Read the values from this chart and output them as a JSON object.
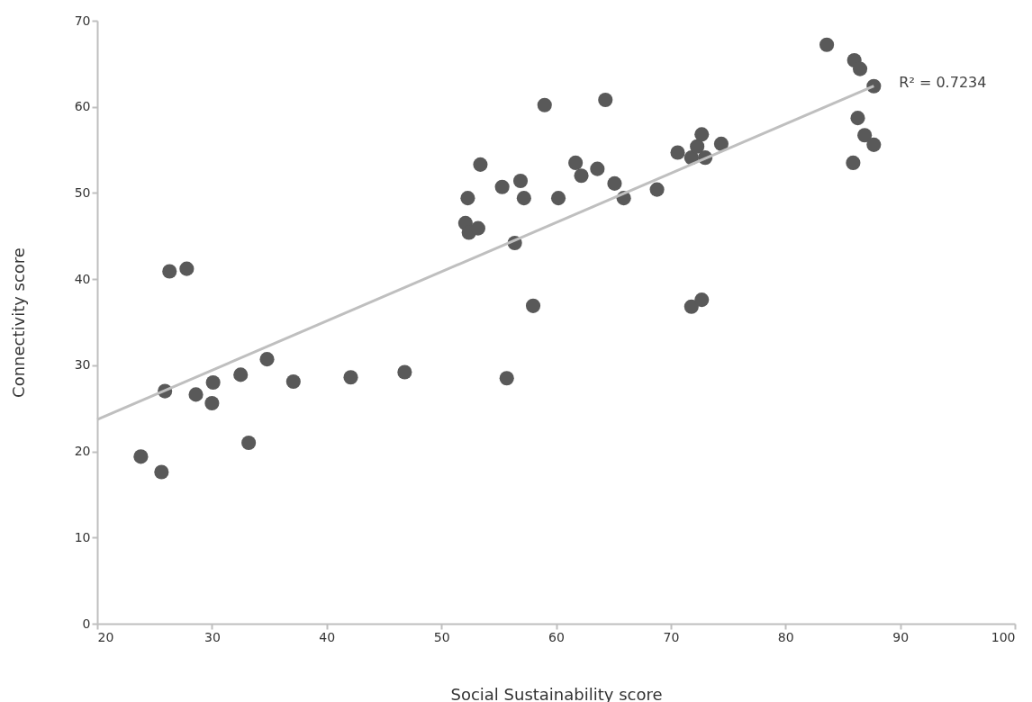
{
  "chart_data": {
    "type": "scatter",
    "xlabel": "Social Sustainability score",
    "ylabel": "Connectivity score",
    "xlim": [
      20,
      100
    ],
    "xticks": [
      20,
      30,
      40,
      50,
      60,
      70,
      80,
      90,
      100
    ],
    "ylim": [
      0,
      70
    ],
    "yticks": [
      0,
      10,
      20,
      30,
      40,
      50,
      60,
      70
    ],
    "grid": false,
    "marker": "circle",
    "series": [
      {
        "color": "#595959",
        "x": [
          23.8,
          25.6,
          25.9,
          26.3,
          27.8,
          28.6,
          30.0,
          30.1,
          32.5,
          33.2,
          34.8,
          37.1,
          42.1,
          46.8,
          52.1,
          52.3,
          52.4,
          53.2,
          53.4,
          55.3,
          55.7,
          56.4,
          56.9,
          57.2,
          58.0,
          59.0,
          60.2,
          61.7,
          62.2,
          63.6,
          64.3,
          65.1,
          65.9,
          68.8,
          70.6,
          71.8,
          72.3,
          72.7,
          73.0,
          74.4,
          71.8,
          72.7,
          83.6,
          86.0,
          86.5,
          87.7,
          86.3,
          86.9,
          87.7,
          85.9
        ],
        "values": [
          19.4,
          17.6,
          27.0,
          40.9,
          41.2,
          26.6,
          25.6,
          28.0,
          28.9,
          21.0,
          30.7,
          28.1,
          28.6,
          29.2,
          46.5,
          49.4,
          45.4,
          45.9,
          53.3,
          50.7,
          28.5,
          44.2,
          51.4,
          49.4,
          36.9,
          60.2,
          49.4,
          53.5,
          52.0,
          52.8,
          60.8,
          51.1,
          49.4,
          50.4,
          54.7,
          54.1,
          55.4,
          56.8,
          54.1,
          55.7,
          36.8,
          37.6,
          67.2,
          65.4,
          64.4,
          62.4,
          58.7,
          56.7,
          55.6,
          53.5
        ]
      },
      {
        "type": "line",
        "color": "#bfbfbf",
        "line_style": "solid",
        "marker": "none",
        "x": [
          20,
          87.7
        ],
        "values": [
          23.7,
          62.4
        ]
      }
    ],
    "annotations": [
      {
        "text": "R² = 0.7234",
        "x": 87.7,
        "y": 62.4
      }
    ]
  }
}
